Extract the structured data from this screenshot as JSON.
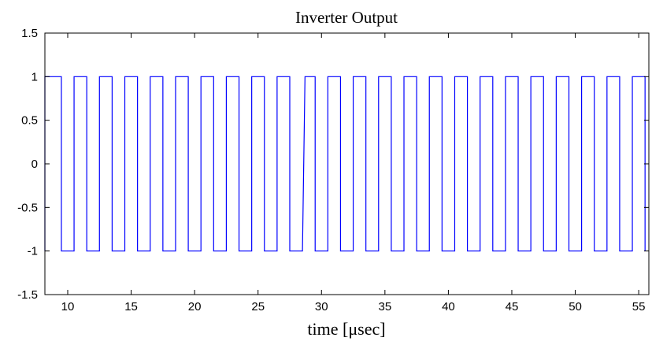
{
  "chart_data": {
    "type": "line",
    "title": "Inverter Output",
    "xlabel": "time [μsec]",
    "ylabel": "",
    "xlim": [
      8.2,
      55.8
    ],
    "ylim": [
      -1.5,
      1.5
    ],
    "x_ticks": [
      10,
      15,
      20,
      25,
      30,
      35,
      40,
      45,
      50,
      55
    ],
    "y_ticks": [
      -1.5,
      -1,
      -0.5,
      0,
      0.5,
      1,
      1.5
    ],
    "x_tick_labels": [
      "10",
      "15",
      "20",
      "25",
      "30",
      "35",
      "40",
      "45",
      "50",
      "55"
    ],
    "y_tick_labels": [
      "-1.5",
      "-1",
      "-0.5",
      "0",
      "0.5",
      "1",
      "1.5"
    ],
    "grid": false,
    "series": [
      {
        "color": "#0000ff",
        "x": [
          8.2,
          8.2,
          9.5,
          9.5,
          10.5,
          10.5,
          11.5,
          11.5,
          12.5,
          12.5,
          13.5,
          13.5,
          14.5,
          14.5,
          15.5,
          15.5,
          16.5,
          16.5,
          17.5,
          17.5,
          18.5,
          18.5,
          19.5,
          19.5,
          20.5,
          20.5,
          21.5,
          21.5,
          22.5,
          22.5,
          23.5,
          23.5,
          24.5,
          24.5,
          25.5,
          25.5,
          26.5,
          26.5,
          27.5,
          27.5,
          28.5,
          28.7,
          29.5,
          29.5,
          30.5,
          30.5,
          31.5,
          31.5,
          32.5,
          32.5,
          33.5,
          33.5,
          34.5,
          34.5,
          35.5,
          35.5,
          36.5,
          36.5,
          37.5,
          37.5,
          38.5,
          38.5,
          39.5,
          39.5,
          40.5,
          40.5,
          41.5,
          41.5,
          42.5,
          42.5,
          43.5,
          43.5,
          44.5,
          44.5,
          45.5,
          45.5,
          46.5,
          46.5,
          47.5,
          47.5,
          48.5,
          48.5,
          49.5,
          49.5,
          50.5,
          50.5,
          51.5,
          51.5,
          52.5,
          52.5,
          53.5,
          53.5,
          54.5,
          54.5,
          55.5,
          55.5
        ],
        "y": [
          -1,
          1,
          1,
          -1,
          -1,
          1,
          1,
          -1,
          -1,
          1,
          1,
          -1,
          -1,
          1,
          1,
          -1,
          -1,
          1,
          1,
          -1,
          -1,
          1,
          1,
          -1,
          -1,
          1,
          1,
          -1,
          -1,
          1,
          1,
          -1,
          -1,
          1,
          1,
          -1,
          -1,
          1,
          1,
          -1,
          -1,
          1,
          1,
          -1,
          -1,
          1,
          1,
          -1,
          -1,
          1,
          1,
          -1,
          -1,
          1,
          1,
          -1,
          -1,
          1,
          1,
          -1,
          -1,
          1,
          1,
          -1,
          -1,
          1,
          1,
          -1,
          -1,
          1,
          1,
          -1,
          -1,
          1,
          1,
          -1,
          -1,
          1,
          1,
          -1,
          -1,
          1,
          1,
          -1,
          -1,
          1,
          1,
          -1,
          -1,
          1,
          1,
          -1,
          -1,
          1,
          1,
          -1
        ]
      }
    ]
  }
}
